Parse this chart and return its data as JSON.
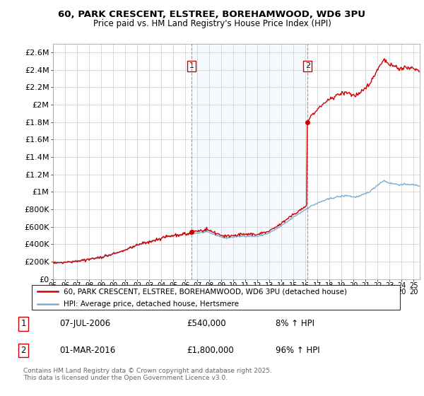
{
  "title_line1": "60, PARK CRESCENT, ELSTREE, BOREHAMWOOD, WD6 3PU",
  "title_line2": "Price paid vs. HM Land Registry's House Price Index (HPI)",
  "property_label": "60, PARK CRESCENT, ELSTREE, BOREHAMWOOD, WD6 3PU (detached house)",
  "hpi_label": "HPI: Average price, detached house, Hertsmere",
  "annotation1_date": "07-JUL-2006",
  "annotation1_price": "£540,000",
  "annotation1_hpi": "8% ↑ HPI",
  "annotation2_date": "01-MAR-2016",
  "annotation2_price": "£1,800,000",
  "annotation2_hpi": "96% ↑ HPI",
  "footer": "Contains HM Land Registry data © Crown copyright and database right 2025.\nThis data is licensed under the Open Government Licence v3.0.",
  "property_color": "#cc0000",
  "hpi_color": "#7bafd4",
  "vline_color": "#e06060",
  "shade_color": "#ddeeff",
  "ylim_max": 2700000,
  "yticks": [
    0,
    200000,
    400000,
    600000,
    800000,
    1000000,
    1200000,
    1400000,
    1600000,
    1800000,
    2000000,
    2200000,
    2400000,
    2600000
  ],
  "xlim_min": 1995,
  "xlim_max": 2025.5,
  "sale1_x": 2006.52,
  "sale1_y": 540000,
  "sale2_x": 2016.17,
  "sale2_y": 1800000
}
